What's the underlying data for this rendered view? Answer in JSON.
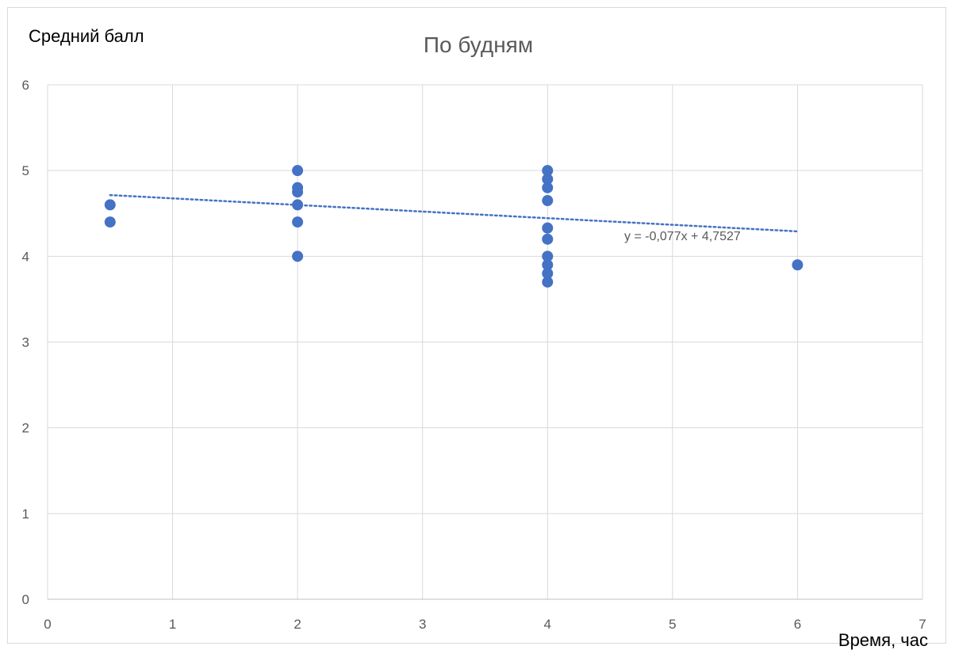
{
  "chart_data": {
    "type": "scatter",
    "title": "По будням",
    "ylabel": "Средний балл",
    "xlabel": "Время, час",
    "xlim": [
      0,
      7
    ],
    "ylim": [
      0,
      6
    ],
    "x_ticks": [
      "0",
      "1",
      "2",
      "3",
      "4",
      "5",
      "6",
      "7"
    ],
    "y_ticks": [
      "0",
      "1",
      "2",
      "3",
      "4",
      "5",
      "6"
    ],
    "grid": true,
    "marker_color": "#4472c4",
    "series": [
      {
        "points": [
          [
            0.5,
            4.6
          ],
          [
            0.5,
            4.4
          ],
          [
            2,
            5.0
          ],
          [
            2,
            4.8
          ],
          [
            2,
            4.75
          ],
          [
            2,
            4.6
          ],
          [
            2,
            4.4
          ],
          [
            2,
            4.0
          ],
          [
            4,
            5.0
          ],
          [
            4,
            4.9
          ],
          [
            4,
            4.8
          ],
          [
            4,
            4.65
          ],
          [
            4,
            4.33
          ],
          [
            4,
            4.2
          ],
          [
            4,
            4.0
          ],
          [
            4,
            3.9
          ],
          [
            4,
            3.8
          ],
          [
            4,
            3.7
          ],
          [
            6,
            3.9
          ]
        ]
      }
    ],
    "trendline": {
      "type": "linear",
      "slope": -0.077,
      "intercept": 4.7527,
      "x_range": [
        0.5,
        6
      ],
      "equation_label": "y = -0,077x + 4,7527",
      "color": "#4472c4",
      "style": "dotted"
    }
  }
}
